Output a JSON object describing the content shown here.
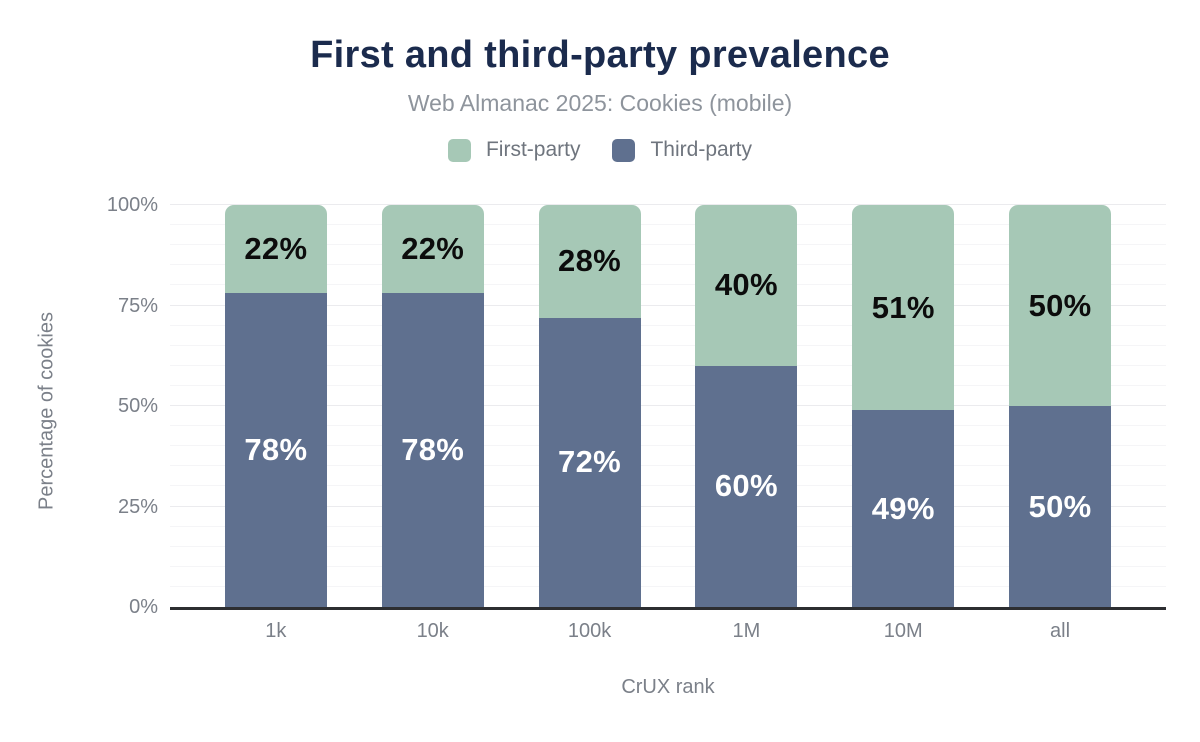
{
  "header": {
    "title": "First and third-party prevalence",
    "subtitle": "Web Almanac 2025: Cookies (mobile)"
  },
  "legend": [
    {
      "label": "First-party",
      "color": "#a6c8b6"
    },
    {
      "label": "Third-party",
      "color": "#5f708f"
    }
  ],
  "colors": {
    "title": "#1b2b4d",
    "subtitle": "#8e949c",
    "axis_text": "#7b8089",
    "axis_line": "#2d2e31",
    "first_party": "#a6c8b6",
    "third_party": "#5f708f"
  },
  "chart_data": {
    "type": "bar",
    "stacked": true,
    "title": "First and third-party prevalence",
    "subtitle": "Web Almanac 2025: Cookies (mobile)",
    "categories": [
      "1k",
      "10k",
      "100k",
      "1M",
      "10M",
      "all"
    ],
    "series": [
      {
        "name": "First-party",
        "color": "#a6c8b6",
        "label_color": "#0c0c0c",
        "values": [
          22,
          22,
          28,
          40,
          51,
          50
        ]
      },
      {
        "name": "Third-party",
        "color": "#5f708f",
        "label_color": "#ffffff",
        "values": [
          78,
          78,
          72,
          60,
          49,
          50
        ]
      }
    ],
    "value_suffix": "%",
    "xlabel": "CrUX rank",
    "ylabel": "Percentage of cookies",
    "ylim": [
      0,
      100
    ],
    "yticks": [
      {
        "value": 0,
        "label": "0%"
      },
      {
        "value": 25,
        "label": "25%"
      },
      {
        "value": 50,
        "label": "50%"
      },
      {
        "value": 75,
        "label": "75%"
      },
      {
        "value": 100,
        "label": "100%"
      }
    ],
    "grid": {
      "minor_step": 5,
      "major_step": 25,
      "minor_color": "#f5f5f7",
      "major_color": "#ebebee"
    },
    "legend_position": "top",
    "legend_entries": [
      "First-party",
      "Third-party"
    ]
  }
}
